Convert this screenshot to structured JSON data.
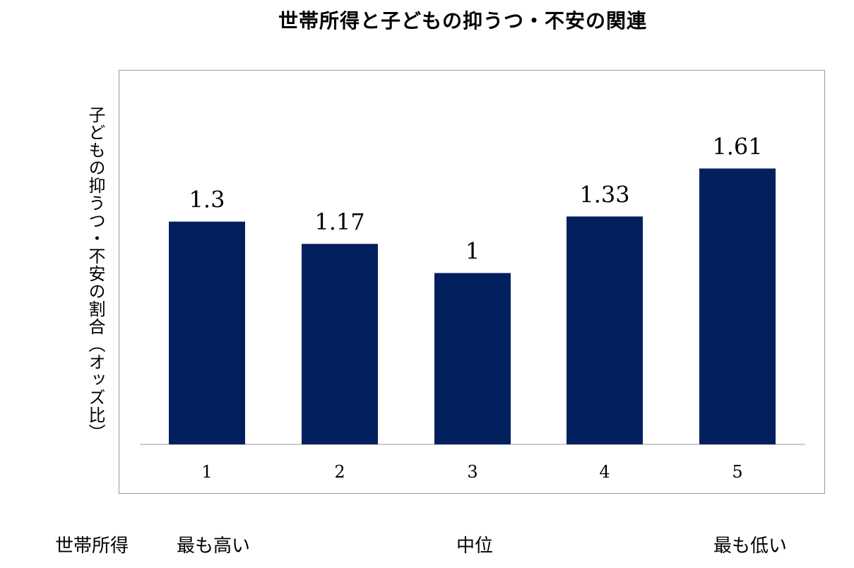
{
  "chart_data": {
    "type": "bar",
    "title": "世帯所得と子どもの抑うつ・不安の関連",
    "ylabel": "子どもの抑うつ・不安の割合（オッズ比）",
    "categories": [
      "1",
      "2",
      "3",
      "4",
      "5"
    ],
    "values": [
      1.3,
      1.17,
      1,
      1.33,
      1.61
    ],
    "data_labels": [
      "1.3",
      "1.17",
      "1",
      "1.33",
      "1.61"
    ],
    "ylim": [
      0,
      1.75
    ],
    "bar_color": "#03205e",
    "grid": false,
    "legend": "none"
  },
  "income_axis": {
    "label": "世帯所得",
    "highest": "最も高い",
    "middle": "中位",
    "lowest": "最も低い"
  }
}
